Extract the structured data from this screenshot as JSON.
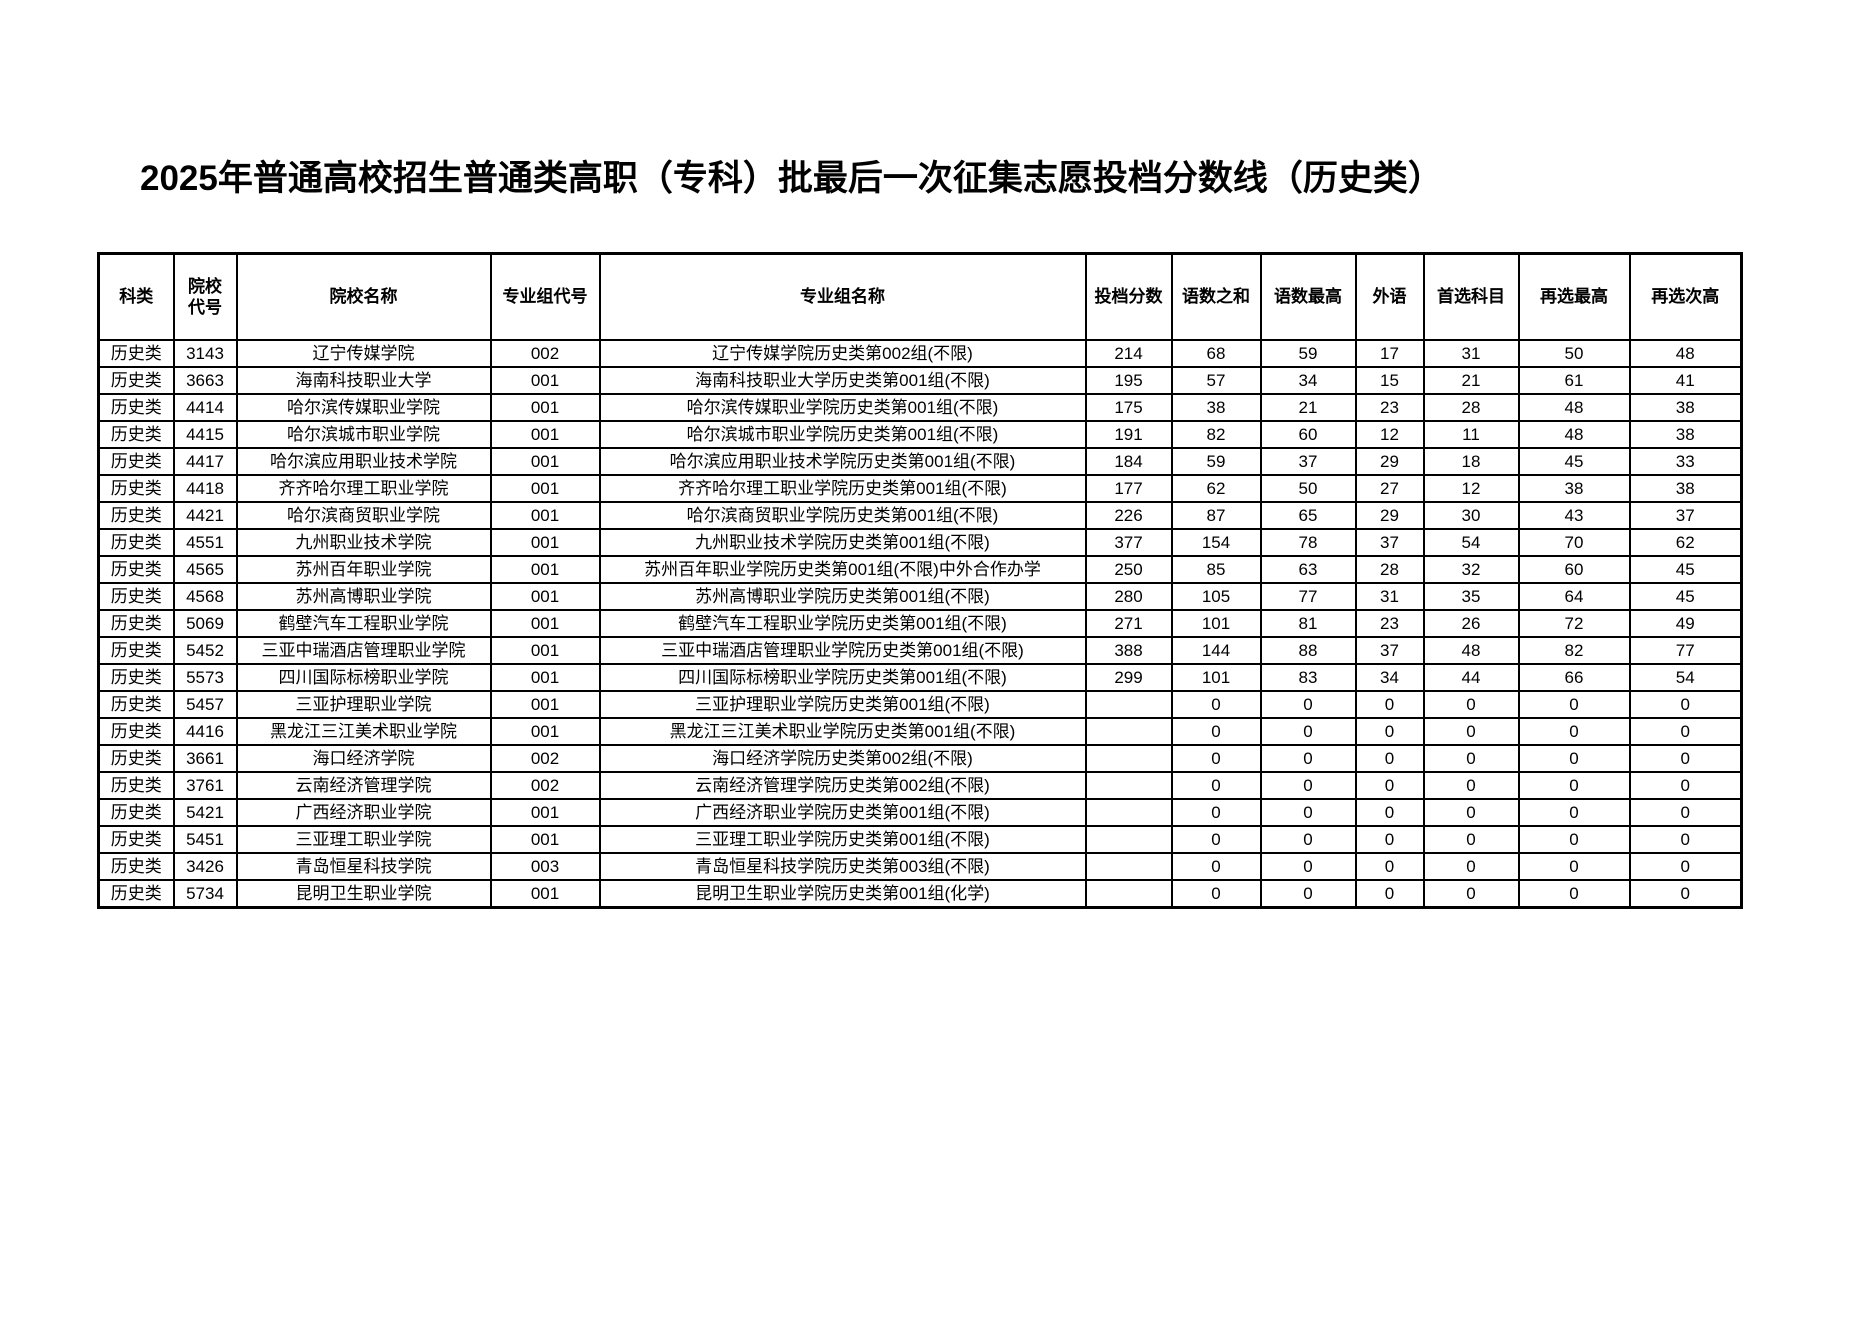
{
  "page": {
    "title": "2025年普通高校招生普通类高职（专科）批最后一次征集志愿投档分数线（历史类）"
  },
  "table": {
    "columns": [
      {
        "key": "category",
        "label": "科类"
      },
      {
        "key": "college_code",
        "label": "院校\n代号"
      },
      {
        "key": "college_name",
        "label": "院校名称"
      },
      {
        "key": "group_code",
        "label": "专业组代号"
      },
      {
        "key": "group_name",
        "label": "专业组名称"
      },
      {
        "key": "score",
        "label": "投档分数"
      },
      {
        "key": "chinese_math_sum",
        "label": "语数之和"
      },
      {
        "key": "chinese_math_max",
        "label": "语数最高"
      },
      {
        "key": "foreign_language",
        "label": "外语"
      },
      {
        "key": "first_subject",
        "label": "首选科目"
      },
      {
        "key": "reselect_max",
        "label": "再选最高"
      },
      {
        "key": "reselect_second",
        "label": "再选次高"
      }
    ],
    "rows": [
      [
        "历史类",
        "3143",
        "辽宁传媒学院",
        "002",
        "辽宁传媒学院历史类第002组(不限)",
        "214",
        "68",
        "59",
        "17",
        "31",
        "50",
        "48"
      ],
      [
        "历史类",
        "3663",
        "海南科技职业大学",
        "001",
        "海南科技职业大学历史类第001组(不限)",
        "195",
        "57",
        "34",
        "15",
        "21",
        "61",
        "41"
      ],
      [
        "历史类",
        "4414",
        "哈尔滨传媒职业学院",
        "001",
        "哈尔滨传媒职业学院历史类第001组(不限)",
        "175",
        "38",
        "21",
        "23",
        "28",
        "48",
        "38"
      ],
      [
        "历史类",
        "4415",
        "哈尔滨城市职业学院",
        "001",
        "哈尔滨城市职业学院历史类第001组(不限)",
        "191",
        "82",
        "60",
        "12",
        "11",
        "48",
        "38"
      ],
      [
        "历史类",
        "4417",
        "哈尔滨应用职业技术学院",
        "001",
        "哈尔滨应用职业技术学院历史类第001组(不限)",
        "184",
        "59",
        "37",
        "29",
        "18",
        "45",
        "33"
      ],
      [
        "历史类",
        "4418",
        "齐齐哈尔理工职业学院",
        "001",
        "齐齐哈尔理工职业学院历史类第001组(不限)",
        "177",
        "62",
        "50",
        "27",
        "12",
        "38",
        "38"
      ],
      [
        "历史类",
        "4421",
        "哈尔滨商贸职业学院",
        "001",
        "哈尔滨商贸职业学院历史类第001组(不限)",
        "226",
        "87",
        "65",
        "29",
        "30",
        "43",
        "37"
      ],
      [
        "历史类",
        "4551",
        "九州职业技术学院",
        "001",
        "九州职业技术学院历史类第001组(不限)",
        "377",
        "154",
        "78",
        "37",
        "54",
        "70",
        "62"
      ],
      [
        "历史类",
        "4565",
        "苏州百年职业学院",
        "001",
        "苏州百年职业学院历史类第001组(不限)中外合作办学",
        "250",
        "85",
        "63",
        "28",
        "32",
        "60",
        "45"
      ],
      [
        "历史类",
        "4568",
        "苏州高博职业学院",
        "001",
        "苏州高博职业学院历史类第001组(不限)",
        "280",
        "105",
        "77",
        "31",
        "35",
        "64",
        "45"
      ],
      [
        "历史类",
        "5069",
        "鹤壁汽车工程职业学院",
        "001",
        "鹤壁汽车工程职业学院历史类第001组(不限)",
        "271",
        "101",
        "81",
        "23",
        "26",
        "72",
        "49"
      ],
      [
        "历史类",
        "5452",
        "三亚中瑞酒店管理职业学院",
        "001",
        "三亚中瑞酒店管理职业学院历史类第001组(不限)",
        "388",
        "144",
        "88",
        "37",
        "48",
        "82",
        "77"
      ],
      [
        "历史类",
        "5573",
        "四川国际标榜职业学院",
        "001",
        "四川国际标榜职业学院历史类第001组(不限)",
        "299",
        "101",
        "83",
        "34",
        "44",
        "66",
        "54"
      ],
      [
        "历史类",
        "5457",
        "三亚护理职业学院",
        "001",
        "三亚护理职业学院历史类第001组(不限)",
        "",
        "0",
        "0",
        "0",
        "0",
        "0",
        "0"
      ],
      [
        "历史类",
        "4416",
        "黑龙江三江美术职业学院",
        "001",
        "黑龙江三江美术职业学院历史类第001组(不限)",
        "",
        "0",
        "0",
        "0",
        "0",
        "0",
        "0"
      ],
      [
        "历史类",
        "3661",
        "海口经济学院",
        "002",
        "海口经济学院历史类第002组(不限)",
        "",
        "0",
        "0",
        "0",
        "0",
        "0",
        "0"
      ],
      [
        "历史类",
        "3761",
        "云南经济管理学院",
        "002",
        "云南经济管理学院历史类第002组(不限)",
        "",
        "0",
        "0",
        "0",
        "0",
        "0",
        "0"
      ],
      [
        "历史类",
        "5421",
        "广西经济职业学院",
        "001",
        "广西经济职业学院历史类第001组(不限)",
        "",
        "0",
        "0",
        "0",
        "0",
        "0",
        "0"
      ],
      [
        "历史类",
        "5451",
        "三亚理工职业学院",
        "001",
        "三亚理工职业学院历史类第001组(不限)",
        "",
        "0",
        "0",
        "0",
        "0",
        "0",
        "0"
      ],
      [
        "历史类",
        "3426",
        "青岛恒星科技学院",
        "003",
        "青岛恒星科技学院历史类第003组(不限)",
        "",
        "0",
        "0",
        "0",
        "0",
        "0",
        "0"
      ],
      [
        "历史类",
        "5734",
        "昆明卫生职业学院",
        "001",
        "昆明卫生职业学院历史类第001组(化学)",
        "",
        "0",
        "0",
        "0",
        "0",
        "0",
        "0"
      ]
    ]
  }
}
